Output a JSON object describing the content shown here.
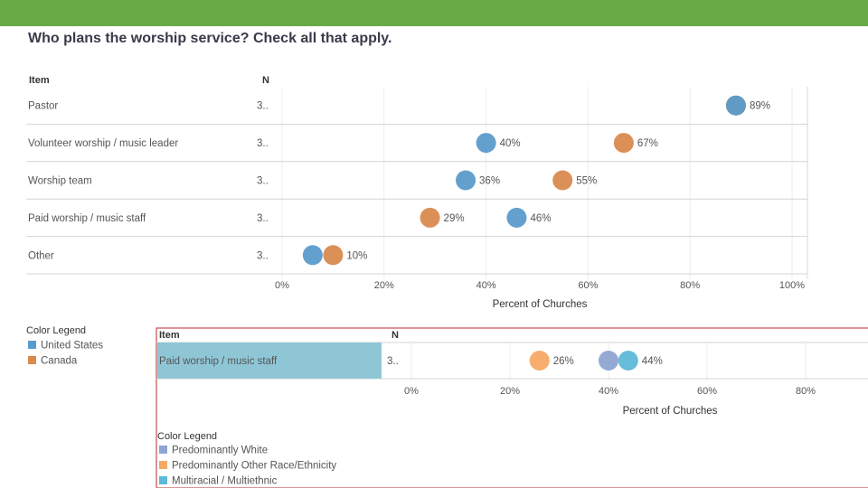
{
  "title": "Who plans the worship service? Check all that apply.",
  "colors": {
    "topbar": "#6aaa46",
    "united_states": "#5b9bcb",
    "canada": "#d98a4e",
    "predominantly_white": "#8ea4d2",
    "predominantly_other": "#f5a966",
    "multiracial": "#5fb8d8",
    "highlight_row": "#8fc6d6",
    "frame": "#c0504d"
  },
  "chart_data": [
    {
      "type": "scatter",
      "item_header": "Item",
      "n_header": "N",
      "xlabel": "Percent of Churches",
      "xlim": [
        0,
        100
      ],
      "xticks": [
        0,
        20,
        40,
        60,
        80,
        100
      ],
      "xtick_labels": [
        "0%",
        "20%",
        "40%",
        "60%",
        "80%",
        "100%"
      ],
      "grid": true,
      "categories": [
        "Pastor",
        "Volunteer worship / music leader",
        "Worship team",
        "Paid worship / music staff",
        "Other"
      ],
      "n_values": [
        "3..",
        "3..",
        "3..",
        "3..",
        "3.."
      ],
      "series": [
        {
          "name": "United States",
          "color_key": "united_states",
          "values": [
            89,
            40,
            36,
            46,
            6
          ],
          "labels": [
            "",
            "40%",
            "36%",
            "46%",
            ""
          ]
        },
        {
          "name": "Canada",
          "color_key": "canada",
          "values": [
            89,
            67,
            55,
            29,
            10
          ],
          "labels": [
            "89%",
            "67%",
            "55%",
            "29%",
            "10%"
          ]
        }
      ],
      "legend_title": "Color Legend",
      "legend": [
        "United States",
        "Canada"
      ]
    },
    {
      "type": "scatter",
      "item_header": "Item",
      "n_header": "N",
      "xlabel": "Percent of Churches",
      "xlim": [
        0,
        90
      ],
      "xticks": [
        0,
        20,
        40,
        60,
        80
      ],
      "xtick_labels": [
        "0%",
        "20%",
        "40%",
        "60%",
        "80%"
      ],
      "grid": true,
      "categories": [
        "Paid worship / music staff"
      ],
      "n_values": [
        "3.."
      ],
      "series": [
        {
          "name": "Predominantly White",
          "color_key": "predominantly_white",
          "values": [
            40
          ],
          "labels": [
            ""
          ]
        },
        {
          "name": "Predominantly Other Race/Ethnicity",
          "color_key": "predominantly_other",
          "values": [
            26
          ],
          "labels": [
            "26%"
          ]
        },
        {
          "name": "Multiracial / Multiethnic",
          "color_key": "multiracial",
          "values": [
            44
          ],
          "labels": [
            "44%"
          ]
        }
      ],
      "legend_title": "Color Legend",
      "legend": [
        "Predominantly White",
        "Predominantly Other Race/Ethnicity",
        "Multiracial / Multiethnic"
      ]
    }
  ]
}
